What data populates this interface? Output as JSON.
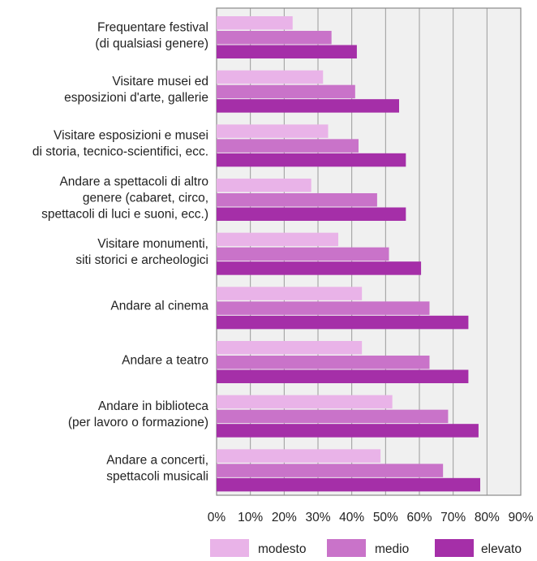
{
  "chart_data": {
    "type": "bar",
    "orientation": "horizontal",
    "categories": [
      [
        "Frequentare festival",
        "(di qualsiasi genere)"
      ],
      [
        "Visitare musei ed",
        "esposizioni d'arte, gallerie"
      ],
      [
        "Visitare esposizioni e musei",
        "di storia, tecnico-scientifici, ecc."
      ],
      [
        "Andare a spettacoli di altro",
        "genere (cabaret, circo,",
        "spettacoli di luci e suoni, ecc.)"
      ],
      [
        "Visitare monumenti,",
        "siti storici e archeologici"
      ],
      [
        "Andare al cinema"
      ],
      [
        "Andare a teatro"
      ],
      [
        "Andare in biblioteca",
        "(per lavoro o formazione)"
      ],
      [
        "Andare a concerti,",
        "spettacoli musicali"
      ]
    ],
    "series": [
      {
        "name": "modesto",
        "color": "#e9b3e8",
        "values": [
          22.5,
          31.5,
          33,
          28,
          36,
          43,
          43,
          52,
          48.5
        ]
      },
      {
        "name": "medio",
        "color": "#c973c9",
        "values": [
          34,
          41,
          42,
          47.5,
          51,
          63,
          63,
          68.5,
          67
        ]
      },
      {
        "name": "elevato",
        "color": "#a52fa8",
        "values": [
          41.5,
          54,
          56,
          56,
          60.5,
          74.5,
          74.5,
          77.5,
          78
        ]
      }
    ],
    "x_ticks": [
      "0%",
      "10%",
      "20%",
      "30%",
      "40%",
      "50%",
      "60%",
      "70%",
      "80%",
      "90%"
    ],
    "xlim": [
      0,
      90
    ],
    "grid": true,
    "legend_position": "bottom",
    "title": "",
    "xlabel": "",
    "ylabel": ""
  }
}
